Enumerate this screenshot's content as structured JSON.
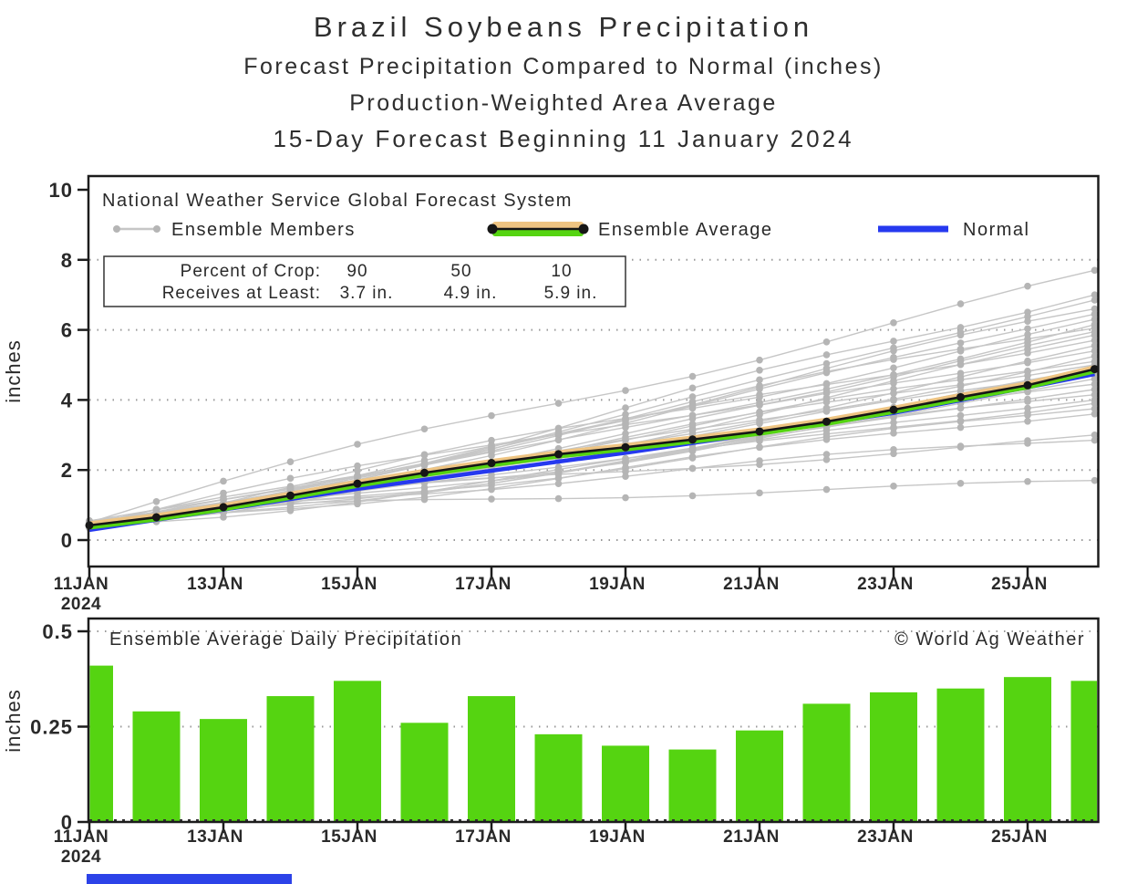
{
  "page_title": {
    "line1": "Brazil Soybeans Precipitation",
    "line2": "Forecast Precipitation Compared to Normal (inches)",
    "line3": "Production-Weighted Area Average",
    "line4": "15-Day Forecast Beginning 11 January 2024"
  },
  "colors": {
    "bar_green": "#55d411",
    "avg_green": "#55d411",
    "avg_orange": "#eec482",
    "normal_blue": "#2639ef",
    "member_line_gray": "#c6c6c6",
    "member_dot_gray": "#b5b5b5",
    "average_black": "#161616",
    "grid_gray": "#999999",
    "frame_black": "#1c1c1c",
    "text_dark": "#2a2a2a",
    "strip_blue": "#2c42e8"
  },
  "chart_data": [
    {
      "type": "line",
      "title": "15-Day Forecast Beginning 11 January 2024",
      "source_label": "National Weather Service Global Forecast System",
      "x_categories": [
        "11JAN",
        "12JAN",
        "13JAN",
        "14JAN",
        "15JAN",
        "16JAN",
        "17JAN",
        "18JAN",
        "19JAN",
        "20JAN",
        "21JAN",
        "22JAN",
        "23JAN",
        "24JAN",
        "25JAN",
        "26JAN"
      ],
      "x_tick_labels": [
        "11JAN",
        "13JAN",
        "15JAN",
        "17JAN",
        "19JAN",
        "21JAN",
        "23JAN",
        "25JAN"
      ],
      "x_year_label": "2024",
      "ylabel": "inches",
      "ylim": [
        0,
        10
      ],
      "yticks": [
        0,
        2,
        4,
        6,
        8,
        10
      ],
      "grid": "dotted horizontal lines at y ticks",
      "legend_position": "top-left inside plot",
      "legend_items": [
        "Ensemble Members",
        "Ensemble Average",
        "Normal"
      ],
      "series": [
        {
          "name": "Ensemble Average",
          "values": [
            0.42,
            0.65,
            0.94,
            1.27,
            1.61,
            1.92,
            2.2,
            2.45,
            2.65,
            2.87,
            3.1,
            3.38,
            3.72,
            4.08,
            4.42,
            4.88
          ]
        },
        {
          "name": "Normal",
          "values": [
            0.29,
            0.58,
            0.87,
            1.17,
            1.46,
            1.72,
            1.98,
            2.24,
            2.49,
            2.77,
            3.05,
            3.34,
            3.63,
            3.99,
            4.36,
            4.74
          ]
        }
      ],
      "ensemble_members": {
        "note": "approx. 29 gray ensemble member traces; params are [start_inches, end_inches, curve_power, wiggle_amp, wiggle_freq, wiggle_phase]; values rebuilt as start+(end-start)*t^power + wiggle",
        "params": [
          [
            0.5,
            7.7,
            0.95,
            0.3,
            1.0,
            0.5
          ],
          [
            0.45,
            7.0,
            1.1,
            0.25,
            1.3,
            2.1
          ],
          [
            0.55,
            6.85,
            1.2,
            0.2,
            0.8,
            4.0
          ],
          [
            0.4,
            6.6,
            1.0,
            0.3,
            1.1,
            1.0
          ],
          [
            0.5,
            6.45,
            1.15,
            0.2,
            0.9,
            3.0
          ],
          [
            0.35,
            6.3,
            1.05,
            0.25,
            1.2,
            5.2
          ],
          [
            0.55,
            6.15,
            1.25,
            0.2,
            0.7,
            0.2
          ],
          [
            0.45,
            6.05,
            0.95,
            0.3,
            1.0,
            2.7
          ],
          [
            0.5,
            5.95,
            1.1,
            0.2,
            1.4,
            4.4
          ],
          [
            0.4,
            5.85,
            1.2,
            0.25,
            0.9,
            1.6
          ],
          [
            0.55,
            5.7,
            1.0,
            0.2,
            1.1,
            3.5
          ],
          [
            0.35,
            5.55,
            1.15,
            0.3,
            0.8,
            0.9
          ],
          [
            0.5,
            5.4,
            1.05,
            0.2,
            1.2,
            2.3
          ],
          [
            0.45,
            5.25,
            1.25,
            0.25,
            1.0,
            4.8
          ],
          [
            0.4,
            5.1,
            0.95,
            0.2,
            1.3,
            1.2
          ],
          [
            0.55,
            5.0,
            1.1,
            0.3,
            0.9,
            3.8
          ],
          [
            0.35,
            4.9,
            1.2,
            0.2,
            1.1,
            0.4
          ],
          [
            0.5,
            4.75,
            1.0,
            0.25,
            0.8,
            2.9
          ],
          [
            0.45,
            4.6,
            1.15,
            0.2,
            1.2,
            5.0
          ],
          [
            0.4,
            4.45,
            1.05,
            0.3,
            1.0,
            1.8
          ],
          [
            0.55,
            4.3,
            1.25,
            0.2,
            0.9,
            3.3
          ],
          [
            0.35,
            4.15,
            0.95,
            0.25,
            1.3,
            0.7
          ],
          [
            0.5,
            4.0,
            1.1,
            0.2,
            1.1,
            2.5
          ],
          [
            0.45,
            3.9,
            1.2,
            0.3,
            0.8,
            4.6
          ],
          [
            0.4,
            3.75,
            1.0,
            0.2,
            1.2,
            1.4
          ],
          [
            0.55,
            3.6,
            1.15,
            0.25,
            1.0,
            3.1
          ],
          [
            0.45,
            3.0,
            0.8,
            0.2,
            0.9,
            0.3
          ],
          [
            0.4,
            2.85,
            0.75,
            0.2,
            1.1,
            2.0
          ],
          [
            0.4,
            1.7,
            0.5,
            0.15,
            1.0,
            1.0
          ]
        ]
      },
      "crop_table": {
        "row1_label": "Percent of Crop:",
        "row2_label": "Receives at Least:",
        "percents": [
          "90",
          "50",
          "10"
        ],
        "amounts": [
          "3.7 in.",
          "4.9 in.",
          "5.9 in."
        ]
      }
    },
    {
      "type": "bar",
      "title": "Ensemble Average Daily Precipitation",
      "credit": "© World Ag Weather",
      "categories": [
        "11JAN",
        "12JAN",
        "13JAN",
        "14JAN",
        "15JAN",
        "16JAN",
        "17JAN",
        "18JAN",
        "19JAN",
        "20JAN",
        "21JAN",
        "22JAN",
        "23JAN",
        "24JAN",
        "25JAN",
        "26JAN"
      ],
      "values": [
        0.41,
        0.29,
        0.27,
        0.33,
        0.37,
        0.26,
        0.33,
        0.23,
        0.2,
        0.19,
        0.24,
        0.31,
        0.34,
        0.35,
        0.38,
        0.37
      ],
      "ylabel": "inches",
      "ylim": [
        0,
        0.53
      ],
      "yticks": [
        0,
        0.25,
        0.5
      ],
      "ytick_labels": [
        "0",
        "0.25",
        "0.5"
      ],
      "x_tick_labels": [
        "11JAN",
        "13JAN",
        "15JAN",
        "17JAN",
        "19JAN",
        "21JAN",
        "23JAN",
        "25JAN"
      ],
      "x_year_label": "2024",
      "grid": "dotted horizontal lines at 0, 0.25, 0.5"
    }
  ]
}
